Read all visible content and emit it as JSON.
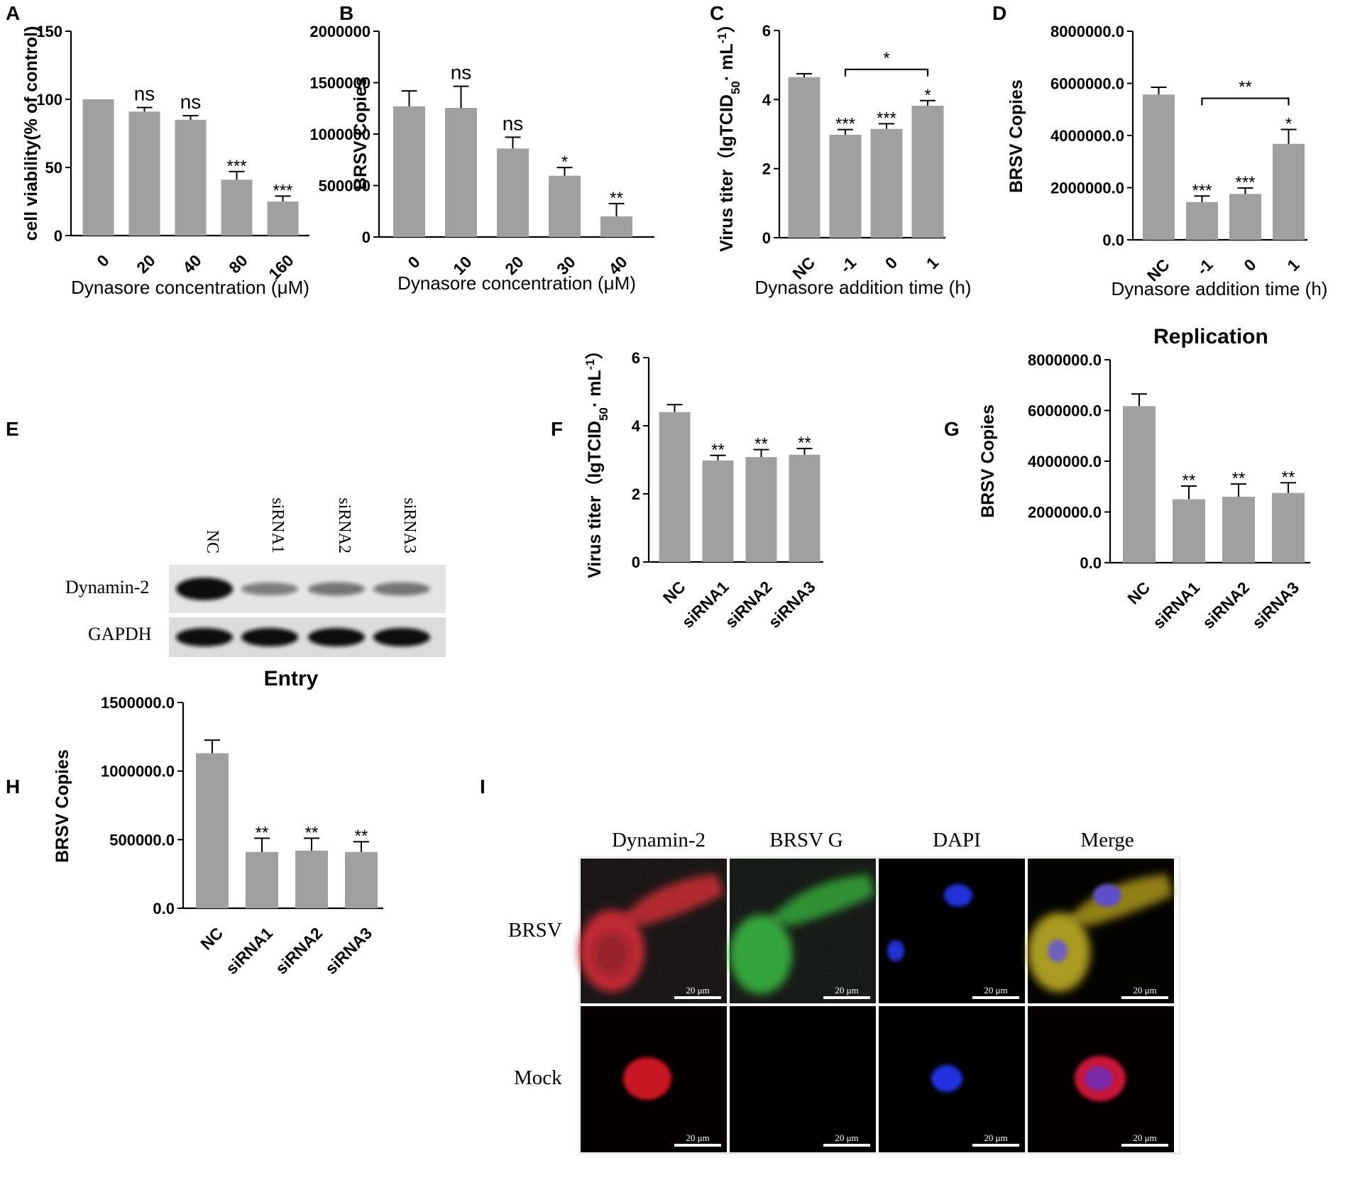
{
  "chart_data": [
    {
      "panel": "A",
      "type": "bar",
      "ylabel": "cell viability(% of control)",
      "xlabel": "Dynasore concentration (μM)",
      "categories": [
        "0",
        "20",
        "40",
        "80",
        "160"
      ],
      "values": [
        100,
        91,
        85,
        41,
        25
      ],
      "errors": [
        0,
        3,
        3,
        6,
        4
      ],
      "significance": [
        "",
        "ns",
        "ns",
        "***",
        "***"
      ],
      "ylim": [
        0,
        150
      ],
      "yticks": [
        "0",
        "50",
        "100",
        "150"
      ]
    },
    {
      "panel": "B",
      "type": "bar",
      "ylabel": "BRSV Copies",
      "xlabel": "Dynasore concentration (μM)",
      "categories": [
        "0",
        "10",
        "20",
        "30",
        "40"
      ],
      "values": [
        1270000,
        1255000,
        860000,
        595000,
        200000
      ],
      "errors": [
        150000,
        210000,
        110000,
        80000,
        125000
      ],
      "significance": [
        "",
        "ns",
        "ns",
        "*",
        "**"
      ],
      "ylim": [
        0,
        2000000
      ],
      "yticks": [
        "0",
        "500000",
        "1000000",
        "1500000",
        "2000000"
      ]
    },
    {
      "panel": "C",
      "type": "bar",
      "ylabel": "Virus titer（lgTCID50· mL-1）",
      "xlabel": "Dynasore addition time (h)",
      "categories": [
        "NC",
        "-1",
        "0",
        "1"
      ],
      "values": [
        4.65,
        2.98,
        3.15,
        3.82
      ],
      "errors": [
        0.1,
        0.15,
        0.15,
        0.15
      ],
      "significance": [
        "",
        "***",
        "***",
        "*"
      ],
      "bracket": {
        "from": "-1",
        "to": "1",
        "label": "*"
      },
      "ylim": [
        0,
        6
      ],
      "yticks": [
        "0",
        "2",
        "4",
        "6"
      ]
    },
    {
      "panel": "D",
      "type": "bar",
      "ylabel": "BRSV Copies",
      "xlabel": "Dynasore addition time (h)",
      "categories": [
        "NC",
        "-1",
        "0",
        "1"
      ],
      "values": [
        5570000,
        1450000,
        1760000,
        3680000
      ],
      "errors": [
        280000,
        230000,
        230000,
        550000
      ],
      "significance": [
        "",
        "***",
        "***",
        "*"
      ],
      "bracket": {
        "from": "-1",
        "to": "1",
        "label": "**"
      },
      "ylim": [
        0,
        8000000
      ],
      "yticks": [
        "0.0",
        "2000000.0",
        "4000000.0",
        "6000000.0",
        "8000000.0"
      ]
    },
    {
      "panel": "F",
      "type": "bar",
      "ylabel": "Virus titer（lgTCID50· mL-1）",
      "xlabel": "",
      "categories": [
        "NC",
        "siRNA1",
        "siRNA2",
        "siRNA3"
      ],
      "values": [
        4.4,
        2.98,
        3.08,
        3.15
      ],
      "errors": [
        0.22,
        0.15,
        0.22,
        0.18
      ],
      "significance": [
        "",
        "**",
        "**",
        "**"
      ],
      "ylim": [
        0,
        6
      ],
      "yticks": [
        "0",
        "2",
        "4",
        "6"
      ]
    },
    {
      "panel": "G",
      "type": "bar",
      "title": "Replication",
      "ylabel": "BRSV Copies",
      "xlabel": "",
      "categories": [
        "NC",
        "siRNA1",
        "siRNA2",
        "siRNA3"
      ],
      "values": [
        6170000,
        2500000,
        2600000,
        2750000
      ],
      "errors": [
        480000,
        520000,
        500000,
        400000
      ],
      "significance": [
        "",
        "**",
        "**",
        "**"
      ],
      "ylim": [
        0,
        8000000
      ],
      "yticks": [
        "0.0",
        "2000000.0",
        "4000000.0",
        "6000000.0",
        "8000000.0"
      ]
    },
    {
      "panel": "H",
      "type": "bar",
      "title": "Entry",
      "ylabel": "BRSV Copies",
      "xlabel": "",
      "categories": [
        "NC",
        "siRNA1",
        "siRNA2",
        "siRNA3"
      ],
      "values": [
        1130000,
        410000,
        420000,
        410000
      ],
      "errors": [
        95000,
        100000,
        90000,
        75000
      ],
      "significance": [
        "",
        "**",
        "**",
        "**"
      ],
      "ylim": [
        0,
        1500000
      ],
      "yticks": [
        "0.0",
        "500000.0",
        "1000000.0",
        "1500000.0"
      ]
    }
  ],
  "blot": {
    "panel": "E",
    "lanes": [
      "NC",
      "siRNA1",
      "siRNA2",
      "siRNA3"
    ],
    "rows": [
      "Dynamin-2",
      "GAPDH"
    ],
    "band_intensity": {
      "Dynamin-2": [
        1.0,
        0.3,
        0.35,
        0.35
      ],
      "GAPDH": [
        1.0,
        1.0,
        1.0,
        1.0
      ]
    }
  },
  "micrograph": {
    "panel": "I",
    "columns": [
      "Dynamin-2",
      "BRSV G",
      "DAPI",
      "Merge"
    ],
    "rows": [
      "BRSV",
      "Mock"
    ],
    "scale_bar": "20 μm"
  },
  "colors": {
    "bar": "#a0a0a0",
    "background": "#ffffff"
  }
}
